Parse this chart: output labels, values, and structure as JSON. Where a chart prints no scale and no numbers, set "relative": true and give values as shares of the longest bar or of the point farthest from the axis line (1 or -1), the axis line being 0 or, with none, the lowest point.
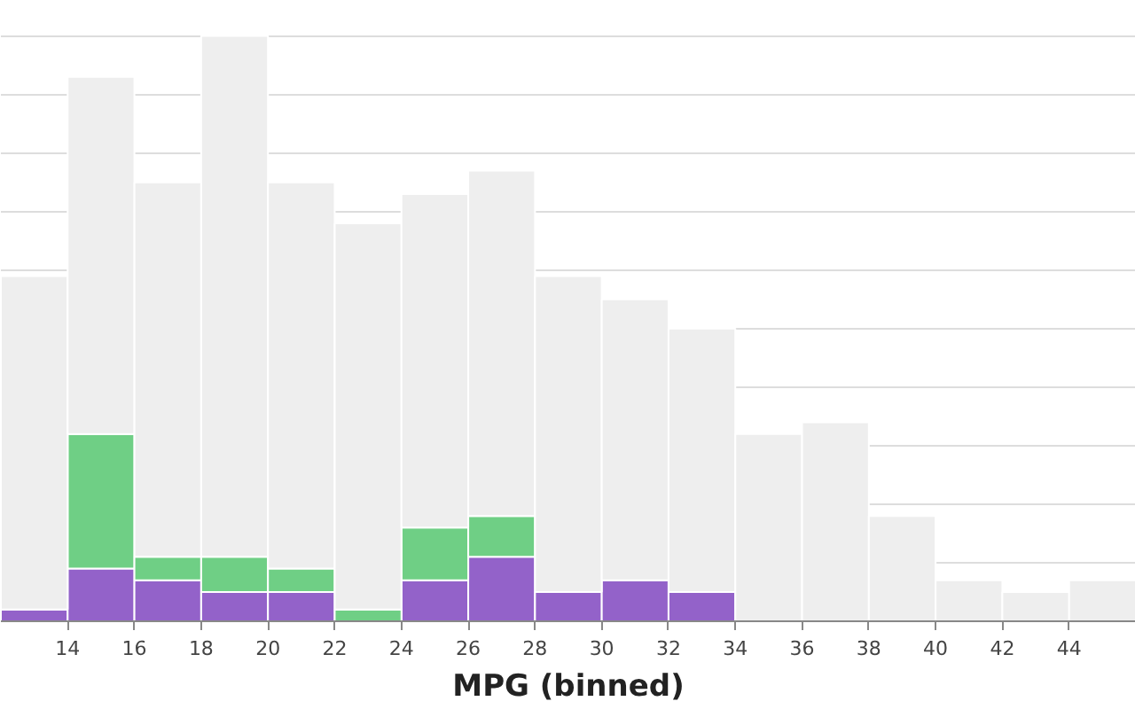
{
  "chart_data": {
    "type": "bar",
    "stacked": true,
    "xlabel": "MPG (binned)",
    "relative": true,
    "x": [
      13,
      15,
      17,
      19,
      21,
      23,
      25,
      27,
      29,
      31,
      33,
      35,
      37,
      39,
      41,
      43,
      45
    ],
    "xlim": [
      12,
      46
    ],
    "xticks": [
      14,
      16,
      18,
      20,
      22,
      24,
      26,
      28,
      30,
      32,
      34,
      36,
      38,
      40,
      42,
      44
    ],
    "series": [
      {
        "color": "#9362c9",
        "values": [
          0.02,
          0.09,
          0.07,
          0.05,
          0.05,
          0,
          0.07,
          0.11,
          0.05,
          0.07,
          0.05,
          0,
          0,
          0,
          0,
          0,
          0
        ]
      },
      {
        "color": "#6fcf85",
        "values": [
          0,
          0.23,
          0.04,
          0.06,
          0.04,
          0.02,
          0.09,
          0.07,
          0,
          0,
          0,
          0,
          0,
          0,
          0,
          0,
          0
        ]
      },
      {
        "color": "#eeeeee",
        "values": [
          0.57,
          0.61,
          0.64,
          0.89,
          0.66,
          0.66,
          0.57,
          0.59,
          0.54,
          0.48,
          0.45,
          0.32,
          0.34,
          0.18,
          0.07,
          0.05,
          0.07
        ]
      }
    ],
    "grid": "y"
  }
}
